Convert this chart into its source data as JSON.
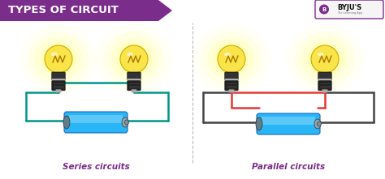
{
  "title": "TYPES OF CIRCUIT",
  "title_bg_color": "#7B2D8B",
  "title_text_color": "#FFFFFF",
  "bg_color": "#FFFFFF",
  "label_series": "Series circuits",
  "label_parallel": "Parallel circuits",
  "label_color": "#7B2D8B",
  "divider_color": "#BBBBBB",
  "wire_series_color": "#009688",
  "wire_parallel_outer_color": "#444444",
  "wire_parallel_inner_color": "#E53935",
  "battery_body_color": "#29B6F6",
  "battery_highlight_color": "#81D4FA",
  "battery_cap_color": "#607D8B",
  "battery_tip_color": "#90A4AE",
  "bulb_glass_color": "#F9E44A",
  "bulb_glass_edge": "#CCAA00",
  "bulb_base_dark": "#222222",
  "bulb_base_silver": "#AAAAAA",
  "bulb_glow_color": "#FFFFAA",
  "byju_bg": "#F5F5F5",
  "byju_border": "#7B2D8B",
  "byju_icon_bg": "#7B2D8B"
}
